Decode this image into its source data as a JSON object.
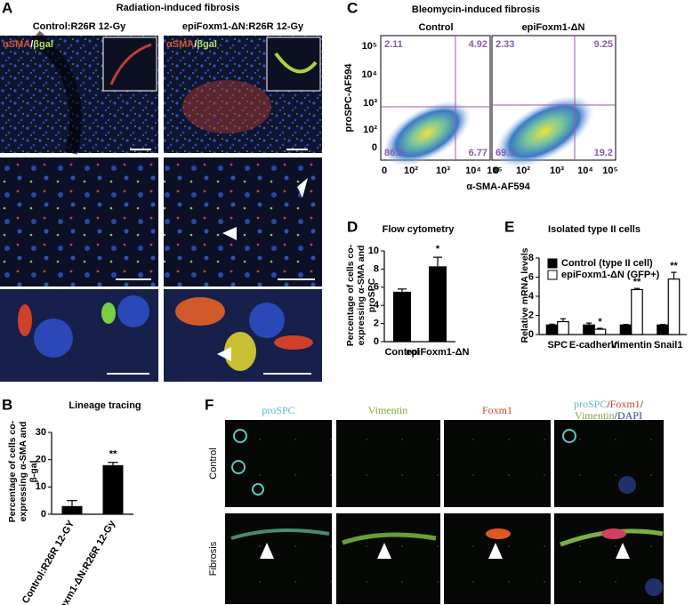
{
  "figure": {
    "panel_labels": [
      "A",
      "B",
      "C",
      "D",
      "E",
      "F"
    ],
    "A": {
      "title": "Radiation-induced fibrosis",
      "columns": [
        "Control:R26R 12-Gy",
        "epiFoxm1-ΔN:R26R 12-Gy"
      ],
      "stain": [
        "αSMA",
        "/",
        "βgal"
      ]
    },
    "C": {
      "title": "Bleomycin-induced fibrosis",
      "columns": [
        "Control",
        "epiFoxm1-ΔN"
      ],
      "y_label": "proSPC-AF594",
      "x_label": "α-SMA-AF594",
      "y_tick_labels": [
        "10⁵",
        "10⁴",
        "10³",
        "10²",
        "0"
      ],
      "x_tick_labels": [
        "0",
        "10²",
        "10³",
        "10⁴",
        "10⁵"
      ],
      "quadrants": [
        [
          2.11,
          4.92,
          86.2,
          6.77
        ],
        [
          2.33,
          9.25,
          69.3,
          19.2
        ]
      ]
    },
    "F": {
      "columns": [
        "proSPC",
        "Vimentin",
        "Foxm1"
      ],
      "merge": [
        "proSPC",
        "/",
        "Foxm1",
        "/",
        "Vimentin",
        "/",
        "DAPI"
      ],
      "rows": [
        "Control",
        "Fibrosis"
      ]
    }
  },
  "chart_data": [
    {
      "type": "bar",
      "title": "Lineage tracing",
      "y_label": "Percentage of cells co-expressing α-SMA and β-gal",
      "categories": [
        "Control:R26R 12-GY",
        "epiFoxm1-ΔN:R26R 12-Gy"
      ],
      "values": [
        3,
        18
      ],
      "errors": [
        2,
        1
      ],
      "significance": [
        null,
        "**"
      ],
      "color": "#000000",
      "ylim": [
        0,
        30
      ],
      "yticks": [
        0,
        10,
        20,
        30
      ]
    },
    {
      "type": "bar",
      "title": "Flow cytometry",
      "y_label": "Percentage of cells co-expressing α-SMA and proSPC",
      "categories": [
        "Control",
        "epiFoxm1-ΔN"
      ],
      "values": [
        5.5,
        8.3
      ],
      "errors": [
        0.3,
        1.0
      ],
      "significance": [
        null,
        "*"
      ],
      "color": "#000000",
      "ylim": [
        0,
        10
      ],
      "yticks": [
        0,
        2,
        4,
        6,
        8,
        10
      ]
    },
    {
      "type": "grouped_bar",
      "title": "Isolated type II cells",
      "y_label": "Relative mRNA levels",
      "categories": [
        "SPC",
        "E-cadherin",
        "Vimentin",
        "Snail1"
      ],
      "series": [
        {
          "name": "Control (type II cell)",
          "color": "#000000",
          "values": [
            1,
            1,
            1,
            1
          ],
          "errors": [
            0.08,
            0.2,
            0.05,
            0.05
          ]
        },
        {
          "name": "epiFoxm1-ΔN (GFP+)",
          "color": "#ffffff",
          "values": [
            1.35,
            0.55,
            4.7,
            5.8
          ],
          "errors": [
            0.3,
            0.1,
            0.12,
            0.7
          ],
          "significance": [
            null,
            "*",
            "**",
            "**"
          ]
        }
      ],
      "ylim": [
        0,
        8
      ],
      "yticks": [
        0,
        2,
        4,
        6,
        8
      ]
    }
  ]
}
